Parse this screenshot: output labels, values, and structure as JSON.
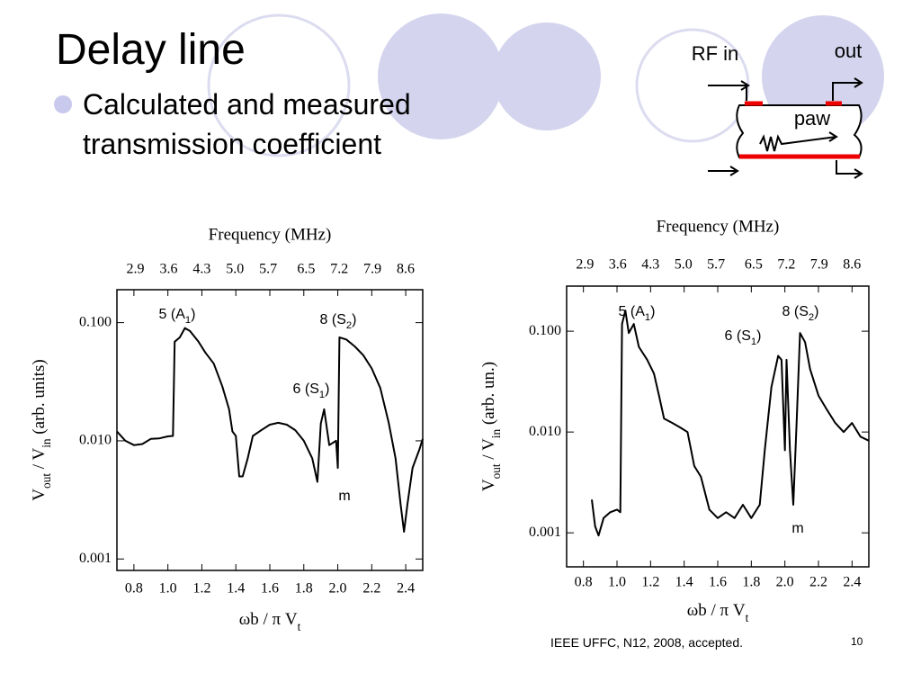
{
  "slide": {
    "title": "Delay line",
    "bullet": "Calculated and measured transmission coefficient",
    "footer": "IEEE UFFC, N12, 2008, accepted.",
    "page_number": "10"
  },
  "diagram": {
    "input_label": "RF in",
    "output_label": "out",
    "wave_label": "paw"
  },
  "chart_data": [
    {
      "type": "line",
      "x2_label": "Frequency (MHz)",
      "x_label": [
        {
          "text": "ωb / π V"
        },
        {
          "text": "t",
          "sub": true
        }
      ],
      "y_label": [
        {
          "text": "V"
        },
        {
          "text": "out",
          "sub": true
        },
        {
          "text": " / V"
        },
        {
          "text": "in",
          "sub": true
        },
        {
          "text": " (arb. units)"
        }
      ],
      "y_scale": "log",
      "xlim": [
        0.7,
        2.5
      ],
      "xticks": [
        0.8,
        {
          "value": 1.0,
          "label": "1.0"
        },
        1.2,
        1.4,
        1.6,
        1.8,
        {
          "value": 2.0,
          "label": "2.0"
        },
        2.2,
        2.4
      ],
      "x2lim": [
        2.51,
        8.96
      ],
      "x2ticks": [
        2.9,
        3.6,
        4.3,
        {
          "value": 5.0,
          "label": "5.0"
        },
        5.7,
        6.5,
        7.2,
        7.9,
        8.6
      ],
      "ylim": [
        0.0008,
        0.19
      ],
      "yticks": [
        {
          "value": 0.001,
          "label": "0.001"
        },
        {
          "value": 0.01,
          "label": "0.010"
        },
        {
          "value": 0.1,
          "label": "0.100"
        }
      ],
      "x": [
        0.7,
        0.75,
        0.8,
        0.85,
        0.9,
        0.95,
        1.0,
        1.03,
        1.04,
        1.07,
        1.1,
        1.13,
        1.18,
        1.22,
        1.27,
        1.32,
        1.36,
        1.38,
        1.4,
        1.42,
        1.44,
        1.47,
        1.5,
        1.55,
        1.6,
        1.65,
        1.7,
        1.75,
        1.8,
        1.85,
        1.88,
        1.9,
        1.92,
        1.95,
        1.99,
        2.0,
        2.01,
        2.05,
        2.1,
        2.15,
        2.2,
        2.25,
        2.3,
        2.34,
        2.37,
        2.39,
        2.41,
        2.44,
        2.48,
        2.5
      ],
      "series": [
        {
          "color": "#000000",
          "values": [
            0.012,
            0.01,
            0.0092,
            0.0094,
            0.0104,
            0.0105,
            0.0109,
            0.011,
            0.069,
            0.075,
            0.09,
            0.085,
            0.069,
            0.056,
            0.045,
            0.029,
            0.0185,
            0.012,
            0.011,
            0.005,
            0.005,
            0.0071,
            0.011,
            0.0123,
            0.0137,
            0.0142,
            0.0137,
            0.0123,
            0.01,
            0.0071,
            0.0045,
            0.014,
            0.0185,
            0.0092,
            0.01,
            0.0059,
            0.075,
            0.072,
            0.063,
            0.053,
            0.041,
            0.028,
            0.0142,
            0.0071,
            0.0029,
            0.0017,
            0.0029,
            0.0059,
            0.0084,
            0.0104
          ]
        }
      ],
      "annotations": [
        [
          {
            "text": "5  (A"
          },
          {
            "text": "1",
            "sub": true
          },
          {
            "text": ")"
          }
        ],
        [
          {
            "text": "8 (S"
          },
          {
            "text": "2",
            "sub": true
          },
          {
            "text": ")"
          }
        ],
        [
          {
            "text": "6 (S"
          },
          {
            "text": "1",
            "sub": true
          },
          {
            "text": ")"
          }
        ],
        [
          {
            "text": "m"
          }
        ]
      ]
    },
    {
      "type": "line",
      "x2_label": "Frequency (MHz)",
      "x_label": [
        {
          "text": "ωb / π V"
        },
        {
          "text": "t",
          "sub": true
        }
      ],
      "y_label": [
        {
          "text": "V"
        },
        {
          "text": "out",
          "sub": true
        },
        {
          "text": " / V"
        },
        {
          "text": "in",
          "sub": true
        },
        {
          "text": " (arb. un.)"
        }
      ],
      "y_scale": "log",
      "xlim": [
        0.7,
        2.5
      ],
      "xticks": [
        0.8,
        {
          "value": 1.0,
          "label": "1.0"
        },
        1.2,
        1.4,
        1.6,
        1.8,
        {
          "value": 2.0,
          "label": "2.0"
        },
        2.2,
        2.4
      ],
      "x2lim": [
        2.51,
        8.96
      ],
      "x2ticks": [
        2.9,
        3.6,
        4.3,
        {
          "value": 5.0,
          "label": "5.0"
        },
        5.7,
        6.5,
        7.2,
        7.9,
        8.6
      ],
      "ylim": [
        0.00046,
        0.28
      ],
      "yticks": [
        {
          "value": 0.001,
          "label": "0.001"
        },
        {
          "value": 0.01,
          "label": "0.010"
        },
        {
          "value": 0.1,
          "label": "0.100"
        }
      ],
      "x": [
        0.85,
        0.87,
        0.89,
        0.92,
        0.96,
        1.0,
        1.02,
        1.03,
        1.05,
        1.07,
        1.1,
        1.13,
        1.18,
        1.22,
        1.25,
        1.28,
        1.33,
        1.38,
        1.42,
        1.46,
        1.5,
        1.55,
        1.6,
        1.65,
        1.7,
        1.75,
        1.8,
        1.85,
        1.88,
        1.92,
        1.96,
        1.98,
        2.0,
        2.01,
        2.03,
        2.05,
        2.07,
        2.09,
        2.12,
        2.15,
        2.2,
        2.25,
        2.3,
        2.35,
        2.4,
        2.45,
        2.5
      ],
      "series": [
        {
          "color": "#000000",
          "values": [
            0.00214,
            0.00116,
            0.00094,
            0.0014,
            0.0016,
            0.0017,
            0.0016,
            0.118,
            0.16,
            0.096,
            0.118,
            0.07,
            0.052,
            0.038,
            0.023,
            0.0136,
            0.0123,
            0.011,
            0.01,
            0.0046,
            0.0036,
            0.0017,
            0.0014,
            0.0016,
            0.0014,
            0.0019,
            0.0014,
            0.0019,
            0.0066,
            0.028,
            0.057,
            0.052,
            0.0066,
            0.052,
            0.0066,
            0.0019,
            0.0123,
            0.096,
            0.078,
            0.042,
            0.023,
            0.0167,
            0.0123,
            0.01,
            0.0123,
            0.009,
            0.0082
          ]
        }
      ],
      "annotations": [
        [
          {
            "text": "5  (A"
          },
          {
            "text": "1",
            "sub": true
          },
          {
            "text": ")"
          }
        ],
        [
          {
            "text": "6 (S"
          },
          {
            "text": "1",
            "sub": true
          },
          {
            "text": ")"
          }
        ],
        [
          {
            "text": "8 (S"
          },
          {
            "text": "2",
            "sub": true
          },
          {
            "text": ")"
          }
        ],
        [
          {
            "text": "m"
          }
        ]
      ]
    }
  ]
}
